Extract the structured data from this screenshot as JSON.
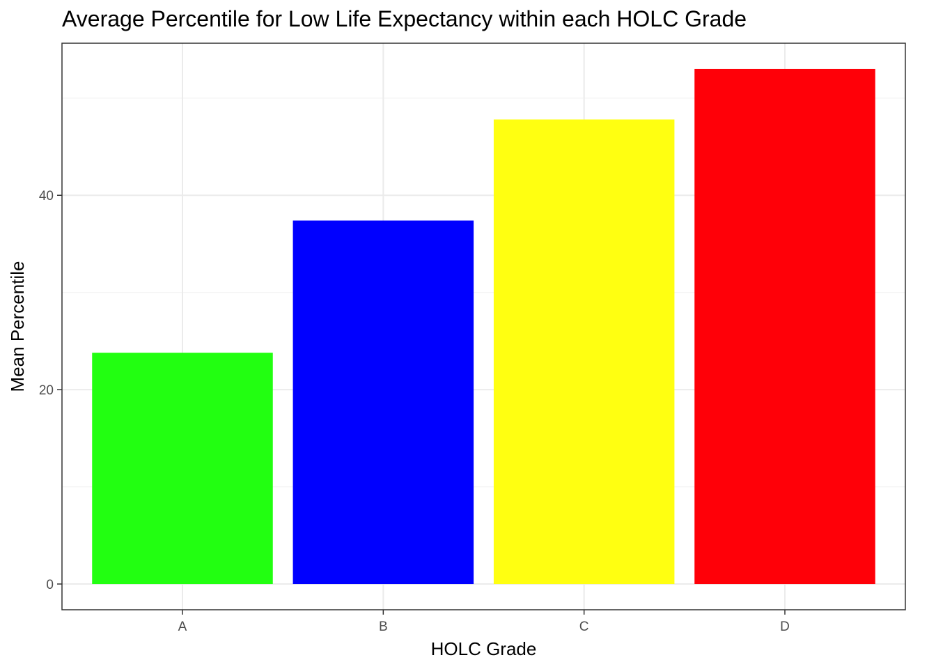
{
  "chart_data": {
    "type": "bar",
    "title": "Average Percentile for Low Life Expectancy within each HOLC Grade",
    "xlabel": "HOLC Grade",
    "ylabel": "Mean Percentile",
    "categories": [
      "A",
      "B",
      "C",
      "D"
    ],
    "values": [
      23.8,
      37.4,
      47.8,
      53.0
    ],
    "colors": [
      "#22ff11",
      "#0000ff",
      "#ffff11",
      "#ff0008"
    ],
    "ylim": [
      -2.65,
      55.65
    ],
    "yticks": [
      0,
      20,
      40
    ],
    "y_minor_ticks": [
      10,
      30,
      50
    ],
    "grid": true,
    "legend": "none"
  }
}
